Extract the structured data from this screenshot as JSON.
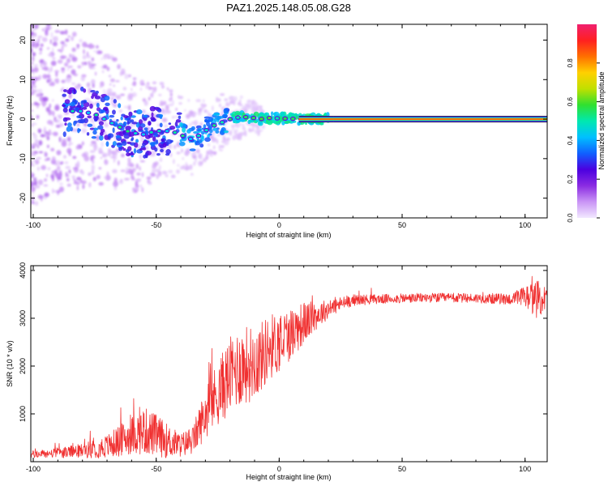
{
  "title": "PAZ1.2025.148.05.08.G28",
  "chart_data": [
    {
      "type": "heatmap",
      "xlabel": "Height of straight line (km)",
      "ylabel": "Frequency (Hz)",
      "xlim": [
        -101,
        109
      ],
      "ylim": [
        -25,
        24
      ],
      "xticks": [
        "-100",
        "-50",
        "0",
        "50",
        "100"
      ],
      "yticks": [
        "-20",
        "-10",
        "0",
        "10",
        "20"
      ],
      "ridge": [
        [
          -80,
          2
        ],
        [
          -74,
          1
        ],
        [
          -68,
          -1
        ],
        [
          -62,
          -3
        ],
        [
          -56,
          -4
        ],
        [
          -50,
          -3
        ],
        [
          -44,
          -3
        ],
        [
          -40,
          -4
        ],
        [
          -36,
          -5
        ],
        [
          -32,
          -4
        ],
        [
          -28,
          -2
        ],
        [
          -24,
          -1
        ],
        [
          -20,
          0
        ],
        [
          -16,
          0.5
        ],
        [
          -12,
          0.5
        ],
        [
          -8,
          0
        ],
        [
          -4,
          0.3
        ],
        [
          0,
          0.2
        ],
        [
          10,
          0
        ],
        [
          20,
          0
        ],
        [
          109,
          0
        ]
      ],
      "gap": [
        22,
        95
      ],
      "colorbar": {
        "label": "Normalized spectral amplitude",
        "range": [
          0,
          1
        ],
        "ticks": [
          "0.0",
          "0.2",
          "0.4",
          "0.6",
          "0.8"
        ],
        "colors": [
          "#f2e8ff",
          "#c994f5",
          "#8a2be2",
          "#4b00e0",
          "#1060ff",
          "#00c0ff",
          "#00e8b0",
          "#30e030",
          "#c0e000",
          "#ffd000",
          "#ff7000",
          "#ff2020",
          "#f0206f"
        ]
      }
    },
    {
      "type": "line",
      "xlabel": "Height of straight line (km)",
      "ylabel": "SNR (10 * v/v)",
      "xlim": [
        -101,
        109
      ],
      "ylim": [
        0,
        4100
      ],
      "xticks": [
        "-100",
        "-50",
        "0",
        "50",
        "100"
      ],
      "yticks": [
        "1000",
        "2000",
        "3000",
        "4000"
      ],
      "color": "#f03030",
      "envelope": [
        [
          -101,
          150,
          80
        ],
        [
          -90,
          180,
          100
        ],
        [
          -80,
          230,
          150
        ],
        [
          -70,
          320,
          250
        ],
        [
          -60,
          550,
          400
        ],
        [
          -55,
          650,
          500
        ],
        [
          -50,
          550,
          450
        ],
        [
          -45,
          420,
          350
        ],
        [
          -40,
          350,
          250
        ],
        [
          -35,
          450,
          300
        ],
        [
          -32,
          800,
          450
        ],
        [
          -28,
          1200,
          600
        ],
        [
          -24,
          1500,
          700
        ],
        [
          -20,
          1800,
          800
        ],
        [
          -16,
          2000,
          850
        ],
        [
          -12,
          2050,
          800
        ],
        [
          -8,
          2150,
          750
        ],
        [
          -4,
          2400,
          700
        ],
        [
          0,
          2500,
          650
        ],
        [
          5,
          2700,
          550
        ],
        [
          10,
          2900,
          450
        ],
        [
          15,
          3050,
          300
        ],
        [
          20,
          3200,
          200
        ],
        [
          25,
          3300,
          150
        ],
        [
          30,
          3380,
          120
        ],
        [
          40,
          3400,
          100
        ],
        [
          60,
          3430,
          100
        ],
        [
          80,
          3420,
          100
        ],
        [
          95,
          3400,
          120
        ],
        [
          100,
          3450,
          250
        ],
        [
          105,
          3400,
          400
        ],
        [
          109,
          3400,
          250
        ]
      ]
    }
  ]
}
